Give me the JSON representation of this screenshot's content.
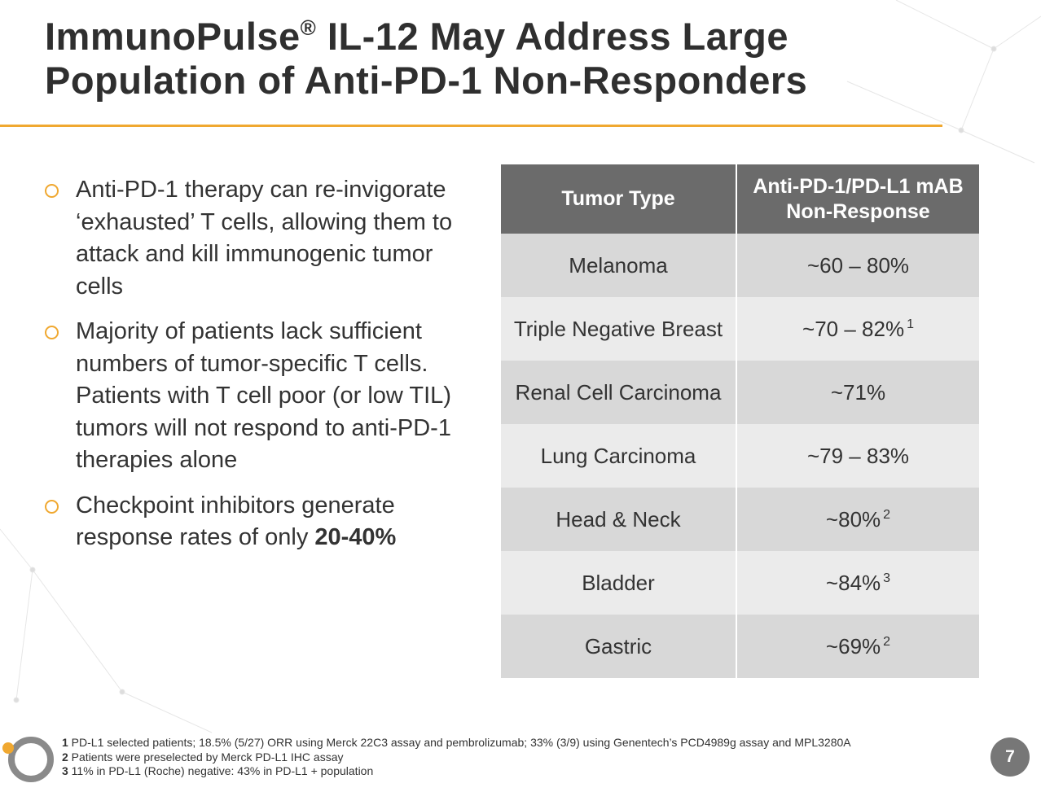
{
  "header": {
    "brand": "ImmunoPulse",
    "mark": "®",
    "line1": " IL-12 May Address Large",
    "line2": "Population of Anti-PD-1 Non-Responders"
  },
  "bullets": [
    {
      "text": "Anti-PD-1 therapy can re-invigorate ‘exhausted’ T cells, allowing them to attack and kill immunogenic tumor cells"
    },
    {
      "text": "Majority of patients lack sufficient numbers of tumor-specific T cells. Patients with T cell poor (or low TIL) tumors will not respond to anti-PD-1 therapies alone"
    },
    {
      "text": "Checkpoint inhibitors generate response rates of only ",
      "bold": "20-40%"
    }
  ],
  "table": {
    "header": [
      "Tumor Type",
      "Anti-PD-1/PD-L1 mAB Non-Response"
    ],
    "rows": [
      {
        "tumor": "Melanoma",
        "response": "~60 – 80%"
      },
      {
        "tumor": "Triple Negative Breast",
        "response": "~70 – 82%",
        "note": "1"
      },
      {
        "tumor": "Renal Cell Carcinoma",
        "response": "~71%"
      },
      {
        "tumor": "Lung Carcinoma",
        "response": "~79 – 83%"
      },
      {
        "tumor": "Head & Neck",
        "response": "~80%",
        "note": "2"
      },
      {
        "tumor": "Bladder",
        "response": "~84%",
        "note": "3"
      },
      {
        "tumor": "Gastric",
        "response": "~69%",
        "note": "2"
      }
    ]
  },
  "footnotes": [
    {
      "num": "1",
      "text": " PD-L1 selected patients; 18.5% (5/27) ORR using Merck 22C3 assay and pembrolizumab;  33% (3/9) using Genentech’s PCD4989g assay and  MPL3280A"
    },
    {
      "num": "2",
      "text": " Patients were preselected by Merck PD-L1 IHC assay"
    },
    {
      "num": "3",
      "text": " 11% in PD-L1 (Roche) negative: 43% in PD-L1 + population"
    }
  ],
  "page_number": "7"
}
